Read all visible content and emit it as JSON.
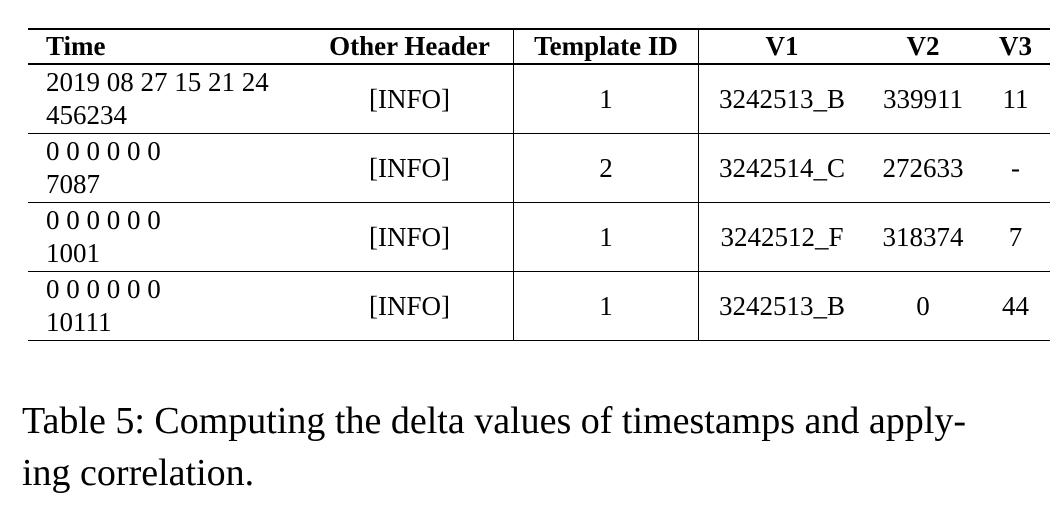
{
  "table": {
    "headers": [
      "Time",
      "Other Header",
      "Template ID",
      "V1",
      "V2",
      "V3"
    ],
    "rows": [
      {
        "time_line1": "2019 08 27 15 21 24",
        "time_line2": "456234",
        "other": "[INFO]",
        "template_id": "1",
        "v1": "3242513_B",
        "v2": "339911",
        "v3": "11"
      },
      {
        "time_line1": "0 0 0 0 0 0",
        "time_line2": "7087",
        "other": "[INFO]",
        "template_id": "2",
        "v1": "3242514_C",
        "v2": "272633",
        "v3": "-"
      },
      {
        "time_line1": "0 0 0 0 0 0",
        "time_line2": "1001",
        "other": "[INFO]",
        "template_id": "1",
        "v1": "3242512_F",
        "v2": "318374",
        "v3": "7"
      },
      {
        "time_line1": "0 0 0 0 0 0",
        "time_line2": "10111",
        "other": "[INFO]",
        "template_id": "1",
        "v1": "3242513_B",
        "v2": "0",
        "v3": "44"
      }
    ]
  },
  "caption": {
    "line1": "Table 5: Computing the delta values of timestamps and apply-",
    "line2": "ing correlation."
  }
}
